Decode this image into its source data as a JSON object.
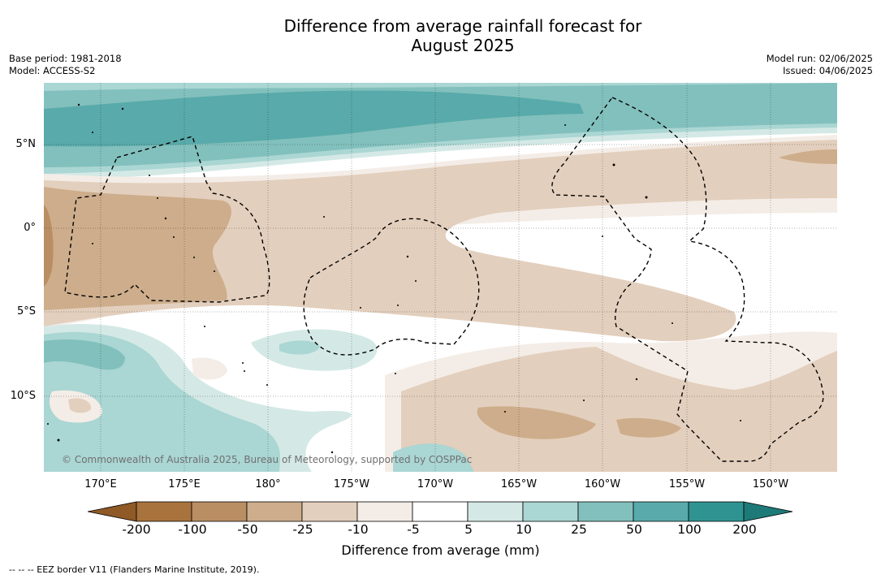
{
  "title_line1": "Difference from average rainfall forecast for",
  "title_line2": "August 2025",
  "meta_left": {
    "base_period": "Base period: 1981-2018",
    "model": "Model: ACCESS-S2"
  },
  "meta_right": {
    "model_run": "Model run: 02/06/2025",
    "issued": "Issued: 04/06/2025"
  },
  "map": {
    "lat_labels": [
      "5°N",
      "0°",
      "5°S",
      "10°S"
    ],
    "lon_labels": [
      "170°E",
      "175°E",
      "180°",
      "175°W",
      "170°W",
      "165°W",
      "160°W",
      "155°W",
      "150°W"
    ],
    "copyright": "© Commonwealth of Australia 2025, Bureau of Meteorology, supported by COSPPac"
  },
  "colorbar": {
    "labels": [
      "-200",
      "-100",
      "-50",
      "-25",
      "-10",
      "-5",
      "5",
      "10",
      "25",
      "50",
      "100",
      "200"
    ],
    "colors": [
      "#a8733d",
      "#b98e63",
      "#cdad8b",
      "#e3cfbd",
      "#f4ede7",
      "#ffffff",
      "#d4e9e6",
      "#aad6d3",
      "#82c0bd",
      "#59aaaa",
      "#2f9491"
    ],
    "low_extend_color": "#8f5a26",
    "high_extend_color": "#1e7a78",
    "title": "Difference from average (mm)"
  },
  "legend": {
    "eez": "--  --  -- EEZ border V11 (Flanders Marine Institute, 2019)."
  }
}
